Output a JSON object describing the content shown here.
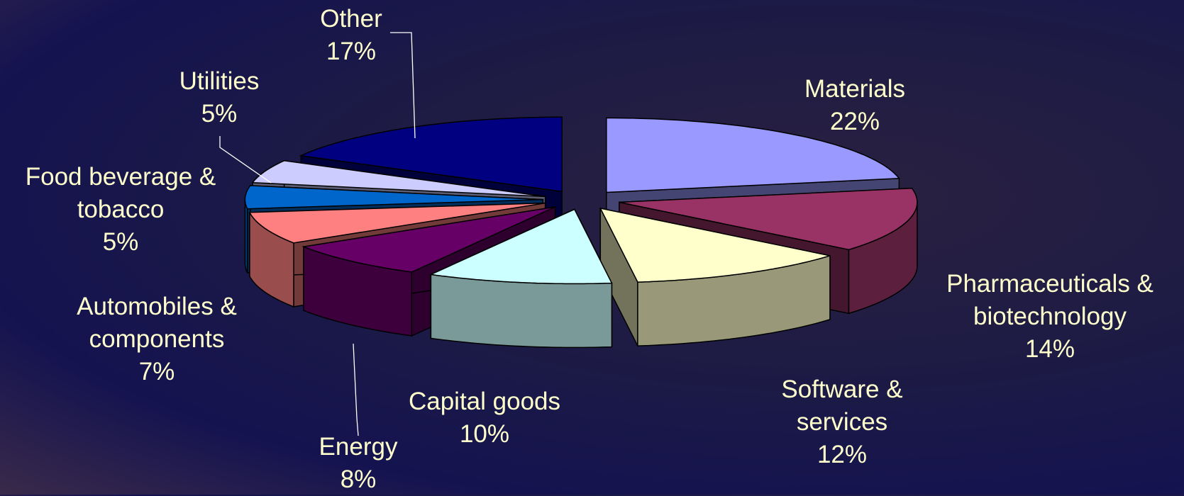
{
  "chart_data": {
    "type": "pie",
    "categories": [
      "Materials",
      "Pharmaceuticals & biotechnology",
      "Software & services",
      "Capital goods",
      "Energy",
      "Automobiles & components",
      "Food beverage & tobacco",
      "Utilities",
      "Other"
    ],
    "values": [
      22,
      14,
      12,
      10,
      8,
      7,
      5,
      5,
      17
    ],
    "value_labels": [
      "22%",
      "14%",
      "12%",
      "10%",
      "8%",
      "7%",
      "5%",
      "5%",
      "17%"
    ],
    "colors": [
      "#9999ff",
      "#993366",
      "#ffffcc",
      "#ccffff",
      "#660066",
      "#ff8080",
      "#0066cc",
      "#ccccff",
      "#000080"
    ]
  }
}
